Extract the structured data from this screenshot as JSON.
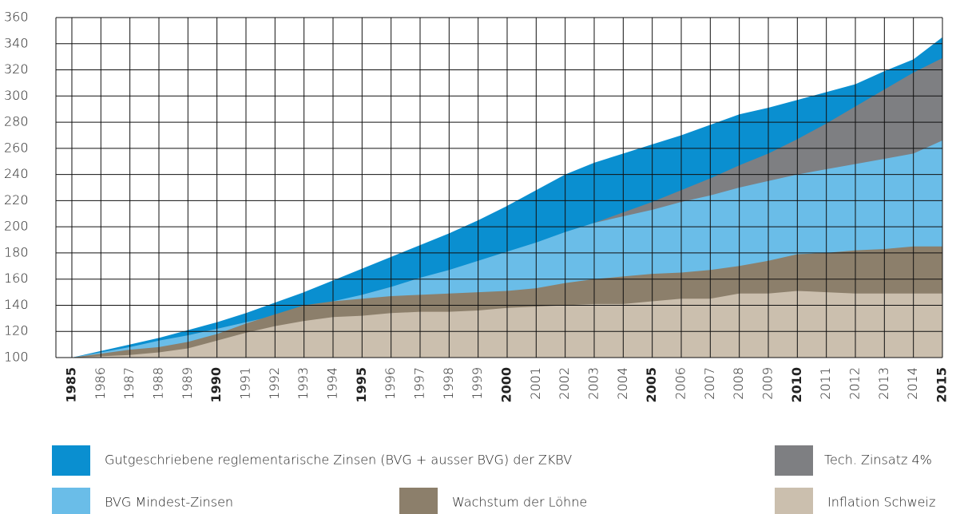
{
  "chart_data": {
    "type": "area",
    "x": [
      1985,
      1986,
      1987,
      1988,
      1989,
      1990,
      1991,
      1992,
      1993,
      1994,
      1995,
      1996,
      1997,
      1998,
      1999,
      2000,
      2001,
      2002,
      2003,
      2004,
      2005,
      2006,
      2007,
      2008,
      2009,
      2010,
      2011,
      2012,
      2013,
      2014,
      2015
    ],
    "xlim": [
      1984.45,
      2015
    ],
    "xticks": [
      1985,
      1986,
      1987,
      1988,
      1989,
      1990,
      1991,
      1992,
      1993,
      1994,
      1995,
      1996,
      1997,
      1998,
      1999,
      2000,
      2001,
      2002,
      2003,
      2004,
      2005,
      2006,
      2007,
      2008,
      2009,
      2010,
      2011,
      2012,
      2013,
      2014,
      2015
    ],
    "bold_xticks": [
      1985,
      1990,
      1995,
      2000,
      2005,
      2010,
      2015
    ],
    "ylim": [
      100,
      360
    ],
    "yticks": [
      100,
      120,
      140,
      160,
      180,
      200,
      220,
      240,
      260,
      280,
      300,
      320,
      340,
      360
    ],
    "grid": true,
    "series": [
      {
        "name": "Gutgeschriebene reglementarische Zinsen (BVG + ausser BVG) der ZKBV",
        "color": "#0a8fd0",
        "values": [
          100,
          105,
          110,
          115,
          121,
          127,
          134,
          142,
          150,
          159,
          168,
          177,
          186,
          195,
          205,
          216,
          228,
          240,
          249,
          256,
          263,
          270,
          278,
          286,
          291,
          297,
          303,
          309,
          319,
          328,
          345
        ]
      },
      {
        "name": "Tech. Zinsatz 4%",
        "color": "#7e7f82",
        "values": [
          100,
          104,
          108,
          112,
          117,
          122,
          127,
          132,
          137,
          142,
          148,
          154,
          160,
          167,
          173,
          180,
          187,
          195,
          203,
          211,
          219,
          228,
          237,
          247,
          256,
          267,
          279,
          292,
          305,
          318,
          329
        ]
      },
      {
        "name": "BVG Mindest-Zinsen",
        "color": "#6abde8",
        "values": [
          100,
          104,
          108,
          113,
          117,
          122,
          127,
          132,
          137,
          143,
          148,
          154,
          161,
          167,
          174,
          181,
          188,
          196,
          203,
          208,
          213,
          219,
          224,
          230,
          235,
          240,
          244,
          248,
          252,
          256,
          266
        ]
      },
      {
        "name": "Wachstum der Löhne",
        "color": "#8c7f6b",
        "values": [
          100,
          103,
          106,
          108,
          112,
          118,
          126,
          133,
          140,
          143,
          145,
          147,
          148,
          149,
          150,
          151,
          153,
          157,
          160,
          162,
          164,
          165,
          167,
          170,
          174,
          179,
          180,
          182,
          183,
          185,
          185
        ]
      },
      {
        "name": "Inflation Schweiz",
        "color": "#cbbfae",
        "values": [
          100,
          101,
          102,
          104,
          107,
          113,
          119,
          124,
          128,
          131,
          132,
          134,
          135,
          135,
          136,
          138,
          139,
          140,
          141,
          141,
          143,
          145,
          145,
          149,
          149,
          151,
          150,
          149,
          149,
          149,
          149
        ]
      }
    ]
  }
}
